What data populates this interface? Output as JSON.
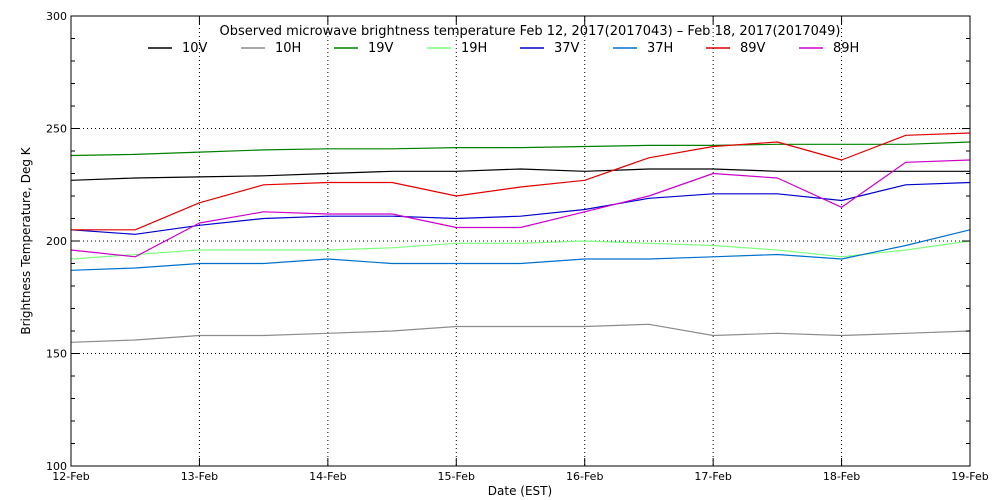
{
  "chart_data": {
    "type": "line",
    "title": "Observed microwave brightness temperature Feb 12, 2017(2017043) – Feb 18, 2017(2017049)",
    "xlabel": "Date (EST)",
    "ylabel": "Brightness Temperature, Deg K",
    "ylim": [
      100,
      300
    ],
    "xlim": [
      "12-Feb",
      "19-Feb"
    ],
    "x_ticks": [
      "12-Feb",
      "13-Feb",
      "14-Feb",
      "15-Feb",
      "16-Feb",
      "17-Feb",
      "18-Feb",
      "19-Feb"
    ],
    "y_ticks": [
      "100",
      "150",
      "200",
      "250",
      "300"
    ],
    "grid": "dotted",
    "legend_position": "top",
    "x": [
      "12-Feb 00:00",
      "12-Feb 12:00",
      "13-Feb 00:00",
      "13-Feb 12:00",
      "14-Feb 00:00",
      "14-Feb 12:00",
      "15-Feb 00:00",
      "15-Feb 12:00",
      "16-Feb 00:00",
      "16-Feb 12:00",
      "17-Feb 00:00",
      "17-Feb 12:00",
      "18-Feb 00:00",
      "18-Feb 12:00",
      "19-Feb 00:00"
    ],
    "series": [
      {
        "name": "10V",
        "color": "#000000",
        "values": [
          227,
          228,
          228.5,
          229,
          230,
          231,
          231,
          232,
          231,
          232,
          232,
          231,
          231,
          231,
          231
        ]
      },
      {
        "name": "10H",
        "color": "#8c8c8c",
        "values": [
          155,
          156,
          158,
          158,
          159,
          160,
          162,
          162,
          162,
          163,
          158,
          159,
          158,
          159,
          160
        ]
      },
      {
        "name": "19V",
        "color": "#008000",
        "values": [
          238,
          238.5,
          239.5,
          240.5,
          241,
          241,
          241.5,
          241.5,
          242,
          242.5,
          242.5,
          243,
          243,
          243,
          244
        ]
      },
      {
        "name": "19H",
        "color": "#7fff7f",
        "values": [
          192,
          194,
          196,
          196,
          196,
          197,
          199,
          199,
          200,
          199,
          198,
          196,
          193,
          196,
          200
        ]
      },
      {
        "name": "37V",
        "color": "#0000cc",
        "values": [
          205,
          203,
          207,
          210,
          211,
          211,
          210,
          211,
          214,
          219,
          221,
          221,
          218,
          225,
          226
        ]
      },
      {
        "name": "37H",
        "color": "#0070d0",
        "values": [
          187,
          188,
          190,
          190,
          192,
          190,
          190,
          190,
          192,
          192,
          193,
          194,
          192,
          198,
          205
        ]
      },
      {
        "name": "89V",
        "color": "#e00000",
        "values": [
          205,
          205,
          217,
          225,
          226,
          226,
          220,
          224,
          227,
          237,
          242,
          244,
          236,
          247,
          248
        ]
      },
      {
        "name": "89H",
        "color": "#cc00cc",
        "values": [
          196,
          193,
          208,
          213,
          212,
          212,
          206,
          206,
          213,
          220,
          230,
          228,
          215,
          235,
          236
        ]
      }
    ]
  }
}
